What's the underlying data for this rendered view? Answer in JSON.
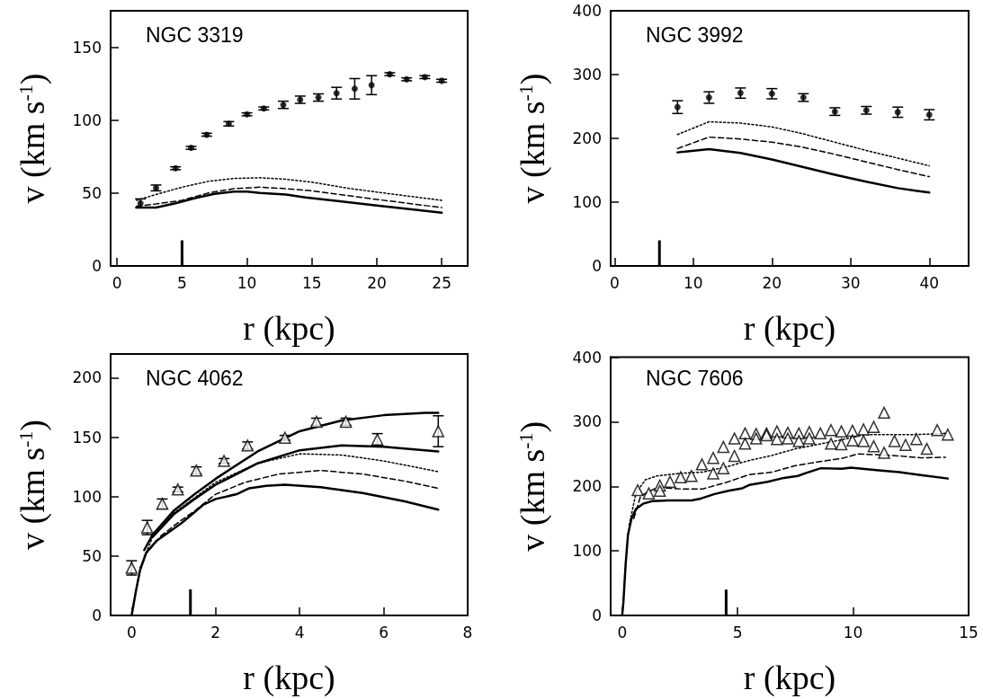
{
  "chart_data": [
    {
      "type": "scatter",
      "title": "NGC 3319",
      "xlabel": "r (kpc)",
      "ylabel": "v (km s$^{-1}$)",
      "xlim": [
        -0.5,
        27
      ],
      "xticks": [
        0,
        5,
        10,
        15,
        20,
        25
      ],
      "ylim": [
        0,
        175
      ],
      "yticks": [
        0,
        50,
        100,
        150
      ],
      "grid": false,
      "ref_lines": [
        {
          "axis": "x",
          "value": 5
        }
      ],
      "series": [
        {
          "type": "scatter",
          "marker": "circle",
          "color": "#000000",
          "x": [
            1.8,
            3.0,
            4.5,
            5.7,
            6.9,
            8.6,
            10.0,
            11.3,
            12.8,
            14.1,
            15.5,
            16.9,
            18.3,
            19.6,
            21.0,
            22.3,
            23.7,
            25.0
          ],
          "values": [
            43,
            53.5,
            67,
            81,
            90,
            97.5,
            104,
            108,
            110.5,
            114,
            115.5,
            118.5,
            121.5,
            124,
            131.5,
            128,
            129.5,
            127
          ],
          "errors": [
            3,
            2,
            1,
            1,
            1,
            1.5,
            1,
            1,
            2.5,
            2.5,
            2.5,
            4,
            7,
            6.5,
            1,
            1,
            1,
            1
          ]
        },
        {
          "type": "line",
          "marker": "none",
          "line_style": "solid",
          "color": "#000000",
          "x": [
            1.5,
            3,
            4.5,
            6,
            7.5,
            9,
            10,
            11,
            13,
            14.5,
            17,
            20,
            23,
            25
          ],
          "values": [
            40,
            40,
            43,
            46.5,
            49.5,
            51,
            51,
            50,
            49,
            47,
            44.5,
            41.5,
            38.5,
            36.5
          ]
        },
        {
          "type": "line",
          "marker": "none",
          "line_style": "dashed",
          "color": "#000000",
          "x": [
            1.5,
            3,
            5,
            7,
            9,
            11,
            13,
            15,
            18,
            21,
            25
          ],
          "values": [
            41,
            42.5,
            45,
            50,
            53,
            54,
            53,
            51.5,
            48,
            44.5,
            40
          ]
        },
        {
          "type": "line",
          "marker": "none",
          "line_style": "dotted",
          "color": "#000000",
          "x": [
            1.5,
            3,
            5,
            7,
            9,
            11,
            13,
            15,
            18,
            21,
            25
          ],
          "values": [
            45,
            49,
            54,
            58,
            60,
            60.5,
            59.5,
            57.5,
            53,
            49.5,
            45
          ]
        }
      ]
    },
    {
      "type": "scatter",
      "title": "NGC 3992",
      "xlabel": "r (kpc)",
      "ylabel": "v (km s$^{-1}$)",
      "xlim": [
        -0.5,
        45
      ],
      "xticks": [
        0,
        10,
        20,
        30,
        40
      ],
      "ylim": [
        0,
        400
      ],
      "yticks": [
        0,
        100,
        200,
        300,
        400
      ],
      "grid": false,
      "ref_lines": [
        {
          "axis": "x",
          "value": 5.7
        }
      ],
      "series": [
        {
          "type": "scatter",
          "marker": "circle",
          "color": "#000000",
          "x": [
            8,
            12,
            16,
            20,
            24,
            28,
            32,
            36,
            40
          ],
          "values": [
            249,
            264,
            271,
            270,
            264,
            242,
            244,
            241,
            237
          ],
          "errors": [
            10,
            9,
            8,
            8,
            6,
            6,
            6,
            8,
            8
          ]
        },
        {
          "type": "line",
          "marker": "none",
          "line_style": "solid",
          "color": "#000000",
          "x": [
            8,
            12,
            16,
            20,
            24,
            28,
            32,
            36,
            40
          ],
          "values": [
            178,
            183,
            177,
            167,
            155,
            143,
            132,
            122,
            115
          ]
        },
        {
          "type": "line",
          "marker": "none",
          "line_style": "dashed",
          "color": "#000000",
          "x": [
            8,
            12,
            16,
            20,
            24,
            28,
            32,
            36,
            40
          ],
          "values": [
            184,
            202,
            199,
            194,
            186,
            175,
            163,
            151,
            140
          ]
        },
        {
          "type": "line",
          "marker": "none",
          "line_style": "dotted",
          "color": "#000000",
          "x": [
            8,
            12,
            16,
            20,
            24,
            28,
            32,
            36,
            40
          ],
          "values": [
            206,
            226,
            224,
            218,
            207,
            194,
            181,
            169,
            157
          ]
        }
      ]
    },
    {
      "type": "scatter",
      "title": "NGC 4062",
      "xlabel": "r (kpc)",
      "ylabel": "v (km s$^{-1}$)",
      "xlim": [
        -0.5,
        8
      ],
      "xticks": [
        0,
        2,
        4,
        6,
        8
      ],
      "ylim": [
        0,
        220
      ],
      "yticks": [
        0,
        50,
        100,
        150,
        200
      ],
      "grid": false,
      "ref_lines": [
        {
          "axis": "x",
          "value": 1.4
        }
      ],
      "series": [
        {
          "type": "scatter",
          "marker": "triangle",
          "color": "#000000",
          "x": [
            0,
            0.37,
            0.73,
            1.1,
            1.54,
            2.2,
            2.76,
            3.65,
            4.4,
            5.1,
            5.85,
            7.3
          ],
          "values": [
            40,
            74,
            94,
            106,
            122,
            130,
            143,
            149.5,
            163,
            163,
            148,
            155
          ],
          "errors": [
            6,
            6,
            4,
            2,
            3,
            2,
            3,
            2,
            3,
            3,
            5,
            13
          ]
        },
        {
          "type": "line",
          "marker": "none",
          "line_style": "solid",
          "color": "#000000",
          "x": [
            0.3,
            0.5,
            1,
            1.5,
            2,
            3,
            4,
            5,
            6,
            7,
            7.3
          ],
          "values": [
            55,
            68,
            88,
            102,
            115,
            138,
            155,
            164,
            168.5,
            170.5,
            170.5
          ]
        },
        {
          "type": "line",
          "marker": "none",
          "line_style": "solid",
          "color": "#000000",
          "x": [
            0.5,
            1,
            1.5,
            2,
            3,
            4,
            5,
            6,
            7.3
          ],
          "values": [
            66,
            85,
            98,
            110,
            128,
            139,
            143,
            142,
            138
          ]
        },
        {
          "type": "line",
          "marker": "none",
          "line_style": "dotted",
          "color": "#000000",
          "x": [
            0.2,
            0.5,
            1,
            2,
            3,
            4,
            5,
            6,
            7.3
          ],
          "values": [
            40,
            66,
            86,
            112,
            128,
            136,
            135,
            130,
            121
          ]
        },
        {
          "type": "line",
          "marker": "none",
          "line_style": "dashed",
          "color": "#000000",
          "x": [
            0.3,
            0.7,
            1.1,
            1.5,
            2,
            2.7,
            3.5,
            4.5,
            5.5,
            6.5,
            7.3
          ],
          "values": [
            50,
            67,
            78,
            88,
            102,
            112,
            119,
            122,
            119,
            113,
            107
          ]
        },
        {
          "type": "line",
          "marker": "none",
          "line_style": "solid",
          "color": "#000000",
          "x": [
            0,
            0.1,
            0.2,
            0.35,
            0.6,
            1,
            1.2,
            1.5,
            1.7,
            2,
            2.5,
            2.8,
            3.2,
            3.65,
            4.5,
            5.5,
            6.5,
            7.3
          ],
          "values": [
            0,
            20,
            38,
            53,
            63,
            73,
            78,
            87,
            93,
            98,
            102,
            107,
            109,
            110,
            108,
            103,
            96,
            89
          ]
        }
      ]
    },
    {
      "type": "scatter",
      "title": "NGC 7606",
      "xlabel": "r (kpc)",
      "ylabel": "v (km s$^{-1}$)",
      "xlim": [
        -0.5,
        15
      ],
      "xticks": [
        0,
        5,
        10,
        15
      ],
      "ylim": [
        0,
        400
      ],
      "yticks": [
        0,
        100,
        200,
        300,
        400
      ],
      "grid": false,
      "ref_lines": [
        {
          "axis": "x",
          "value": 4.5
        }
      ],
      "series": [
        {
          "type": "scatter",
          "marker": "triangle",
          "color": "#000000",
          "x": [
            0.67,
            1.15,
            1.63,
            1.63,
            2.07,
            2.53,
            3.0,
            3.45,
            3.94,
            3.94,
            4.38,
            4.38,
            4.86,
            4.86,
            5.32,
            5.32,
            5.8,
            5.8,
            6.25,
            6.25,
            6.7,
            6.7,
            7.17,
            7.17,
            7.65,
            7.65,
            8.1,
            8.1,
            8.58,
            9.04,
            9.04,
            9.49,
            9.49,
            9.97,
            9.97,
            10.45,
            10.45,
            10.89,
            10.89,
            11.34,
            11.34,
            11.79,
            12.27,
            12.74,
            13.19,
            13.64,
            14.1
          ],
          "values": [
            194,
            189,
            201,
            193,
            207,
            214,
            216,
            234,
            244,
            220,
            261,
            228,
            274,
            247,
            282,
            266,
            281,
            274,
            282,
            279,
            285,
            273,
            283,
            274,
            282,
            270,
            284,
            274,
            282,
            287,
            266,
            285,
            265,
            286,
            271,
            288,
            270,
            292,
            262,
            314,
            252,
            270,
            264,
            273,
            258,
            287,
            280
          ]
        },
        {
          "type": "line",
          "marker": "none",
          "line_style": "solid",
          "color": "#000000",
          "x": [
            0,
            0.05,
            0.15,
            0.25,
            0.4,
            0.6,
            0.9,
            1.3,
            2,
            3,
            3.4,
            4,
            4.6,
            5.2,
            5.5,
            6.3,
            7,
            7.6,
            8,
            8.6,
            9.5,
            9.9,
            11,
            12,
            13,
            14.1
          ],
          "values": [
            0,
            20,
            80,
            125,
            150,
            165,
            173,
            177,
            178,
            178,
            181,
            188,
            193,
            197,
            202,
            207,
            213,
            216,
            221,
            228,
            227,
            229,
            225,
            222,
            217,
            212
          ]
        },
        {
          "type": "line",
          "marker": "none",
          "line_style": "dashed",
          "color": "#000000",
          "x": [
            0.5,
            0.8,
            1.5,
            2.5,
            3.5,
            4.5,
            5.5,
            6.5,
            7.5,
            8.5,
            9.5,
            10.2,
            11,
            12,
            13,
            14
          ],
          "values": [
            150,
            185,
            198,
            196,
            196,
            206,
            218,
            222,
            232,
            238,
            243,
            250,
            249,
            247,
            244,
            245
          ]
        },
        {
          "type": "line",
          "marker": "none",
          "line_style": "dotted",
          "color": "#000000",
          "x": [
            0.3,
            0.6,
            1,
            1.5,
            2.5,
            3.5,
            4.5,
            5.5,
            6.5,
            7.5,
            8.5,
            9.5,
            10.5,
            11.5,
            12.5,
            13.5,
            14
          ],
          "values": [
            140,
            190,
            210,
            216,
            220,
            222,
            230,
            240,
            248,
            258,
            265,
            272,
            280,
            280,
            280,
            281,
            282
          ]
        }
      ]
    }
  ]
}
